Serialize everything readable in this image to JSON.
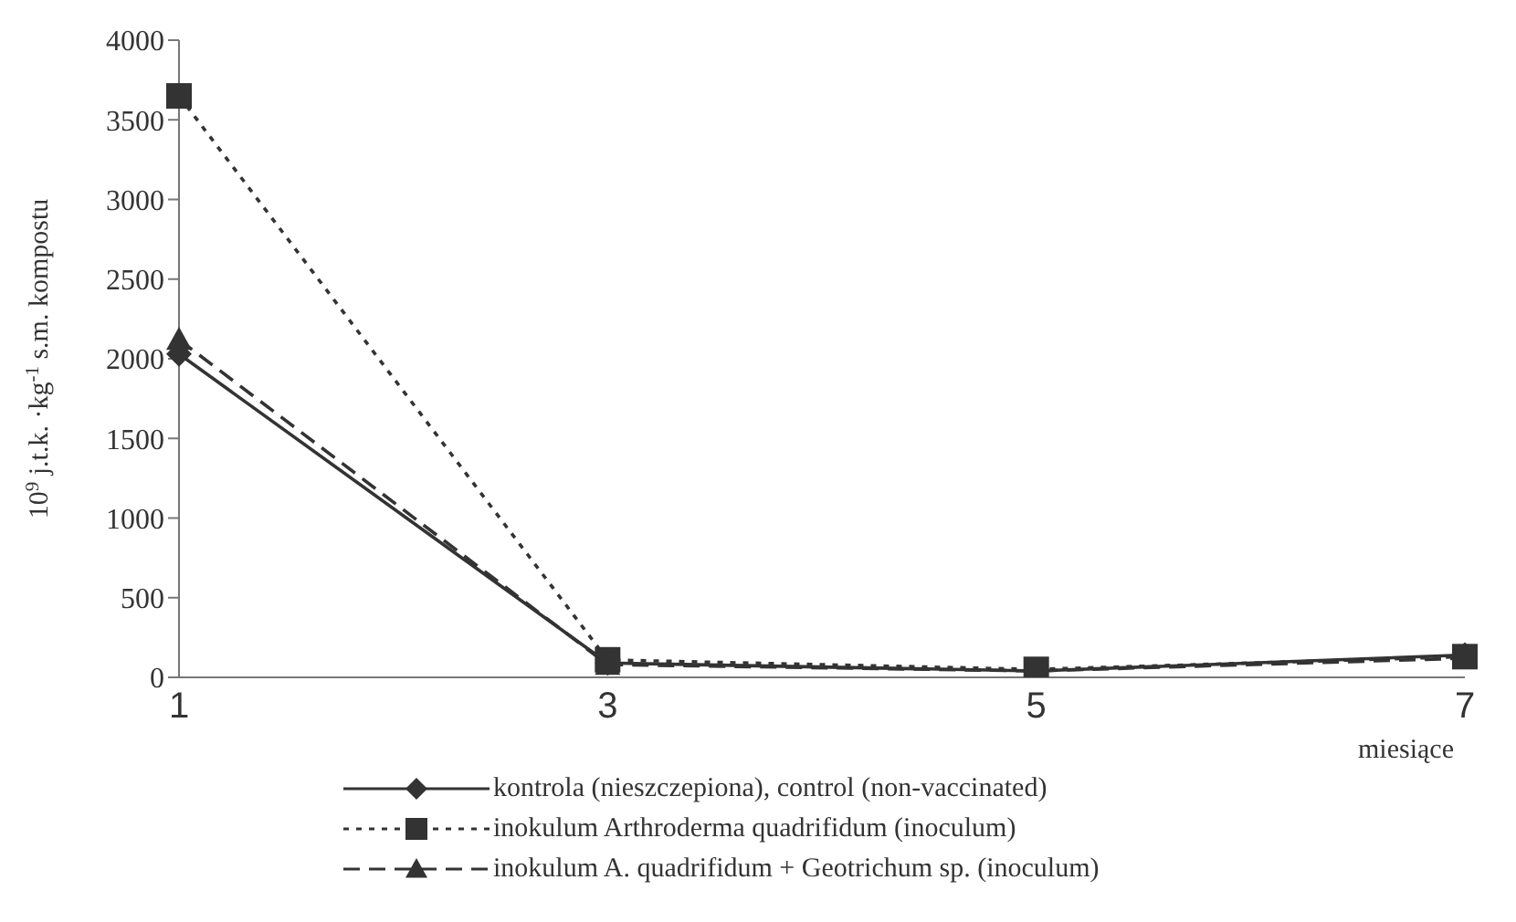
{
  "chart_data": {
    "type": "line",
    "xlabel": "miesiące",
    "ylabel": "10$^{9}$ j.t.k. ·kg$^{-1}$ s.m. kompostu",
    "categories": [
      "1",
      "3",
      "5",
      "7"
    ],
    "series": [
      {
        "name": "kontrola (nieszczepiona), control (non-vaccinated)",
        "color": "#333333",
        "values": [
          2030,
          90,
          40,
          140
        ],
        "marker": "diamond",
        "line_style": "solid"
      },
      {
        "name": "inokulum Arthroderma quadrifidum (inoculum)",
        "color": "#333333",
        "values": [
          3650,
          110,
          50,
          130
        ],
        "marker": "square",
        "line_style": "dotted"
      },
      {
        "name": "inokulum A. quadrifidum + Geotrichum sp. (inoculum)",
        "color": "#333333",
        "values": [
          2120,
          80,
          40,
          120
        ],
        "marker": "triangle",
        "line_style": "dashed"
      }
    ],
    "ylim": [
      0,
      4000
    ],
    "yticks": [
      0,
      500,
      1000,
      1500,
      2000,
      2500,
      3000,
      3500,
      4000
    ],
    "grid": false,
    "legend": "bottom"
  }
}
